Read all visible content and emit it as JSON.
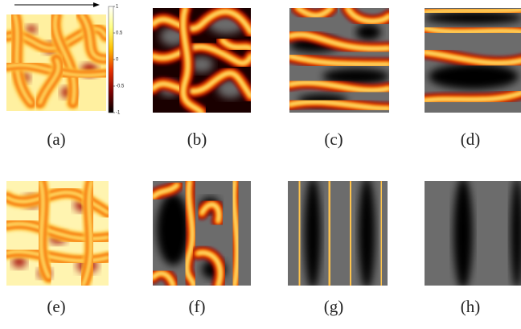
{
  "panels": [
    {
      "label": "(a)"
    },
    {
      "label": "(b)"
    },
    {
      "label": "(c)"
    },
    {
      "label": "(d)"
    },
    {
      "label": "(e)"
    },
    {
      "label": "(f)"
    },
    {
      "label": "(g)"
    },
    {
      "label": "(h)"
    }
  ],
  "colorbar": {
    "range": [
      -1,
      1
    ],
    "ticks": [
      1,
      0.5,
      0,
      -0.5,
      -1
    ]
  }
}
